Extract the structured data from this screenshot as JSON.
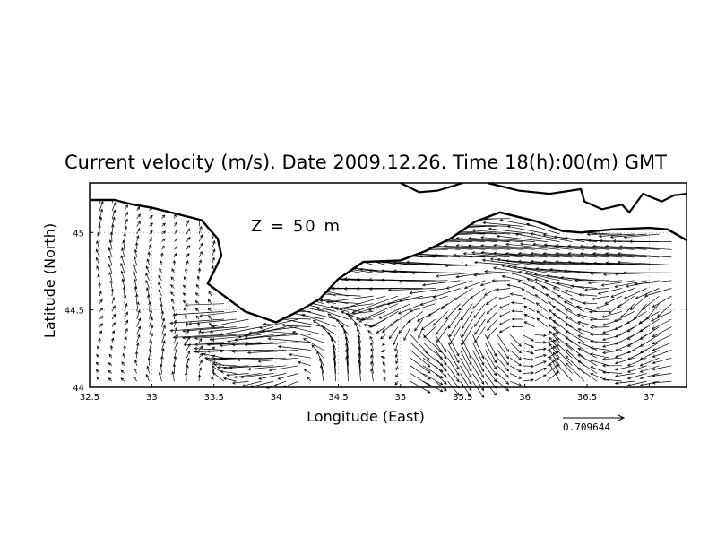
{
  "chart_data": {
    "type": "vector-field",
    "title": "Current velocity (m/s). Date 2009.12.26. Time 18(h):00(m) GMT",
    "annotation": "Z = 50 m",
    "xlabel": "Longitude (East)",
    "ylabel": "Latitude (North)",
    "xlim": [
      32.5,
      37.3
    ],
    "ylim": [
      44.0,
      45.32
    ],
    "x_ticks": [
      "32.5",
      "33",
      "33.5",
      "34",
      "34.5",
      "35",
      "35.5",
      "36",
      "36.5",
      "37"
    ],
    "x_tick_values": [
      32.5,
      33,
      33.5,
      34,
      34.5,
      35,
      35.5,
      36,
      36.5,
      37
    ],
    "y_ticks": [
      "44",
      "44.5",
      "45"
    ],
    "y_tick_values": [
      44,
      44.5,
      45
    ],
    "grid": true,
    "grid_style": "dotted",
    "reference_vector_label": "0.709644",
    "reference_vector_speed": 0.709644,
    "coastline": [
      [
        32.5,
        45.21
      ],
      [
        32.7,
        45.21
      ],
      [
        32.85,
        45.18
      ],
      [
        33.0,
        45.16
      ],
      [
        33.2,
        45.12
      ],
      [
        33.4,
        45.08
      ],
      [
        33.53,
        44.96
      ],
      [
        33.56,
        44.85
      ],
      [
        33.5,
        44.75
      ],
      [
        33.45,
        44.67
      ],
      [
        33.6,
        44.58
      ],
      [
        33.75,
        44.49
      ],
      [
        34.0,
        44.42
      ],
      [
        34.2,
        44.5
      ],
      [
        34.35,
        44.57
      ],
      [
        34.5,
        44.7
      ],
      [
        34.7,
        44.81
      ],
      [
        35.0,
        44.82
      ],
      [
        35.2,
        44.88
      ],
      [
        35.4,
        44.96
      ],
      [
        35.6,
        45.07
      ],
      [
        35.8,
        45.13
      ],
      [
        36.1,
        45.07
      ],
      [
        36.3,
        45.01
      ],
      [
        36.45,
        45.0
      ],
      [
        36.7,
        45.02
      ],
      [
        37.0,
        45.03
      ],
      [
        37.15,
        45.02
      ],
      [
        37.3,
        44.95
      ]
    ],
    "land_north_coast": [
      [
        35.0,
        45.32
      ],
      [
        35.15,
        45.26
      ],
      [
        35.3,
        45.27
      ],
      [
        35.5,
        45.32
      ]
    ],
    "land_azov_coast": [
      [
        35.7,
        45.32
      ],
      [
        35.95,
        45.27
      ],
      [
        36.2,
        45.25
      ],
      [
        36.45,
        45.28
      ],
      [
        36.48,
        45.2
      ],
      [
        36.62,
        45.15
      ],
      [
        36.78,
        45.18
      ],
      [
        36.84,
        45.13
      ],
      [
        36.95,
        45.25
      ],
      [
        37.1,
        45.2
      ],
      [
        37.2,
        45.24
      ],
      [
        37.3,
        45.25
      ]
    ],
    "vector_field_description": "Northward currents over the northwestern shelf; strong eastward-to-westward along-slope jet south of the Crimean coast with cyclonic and anticyclonic meanders"
  }
}
